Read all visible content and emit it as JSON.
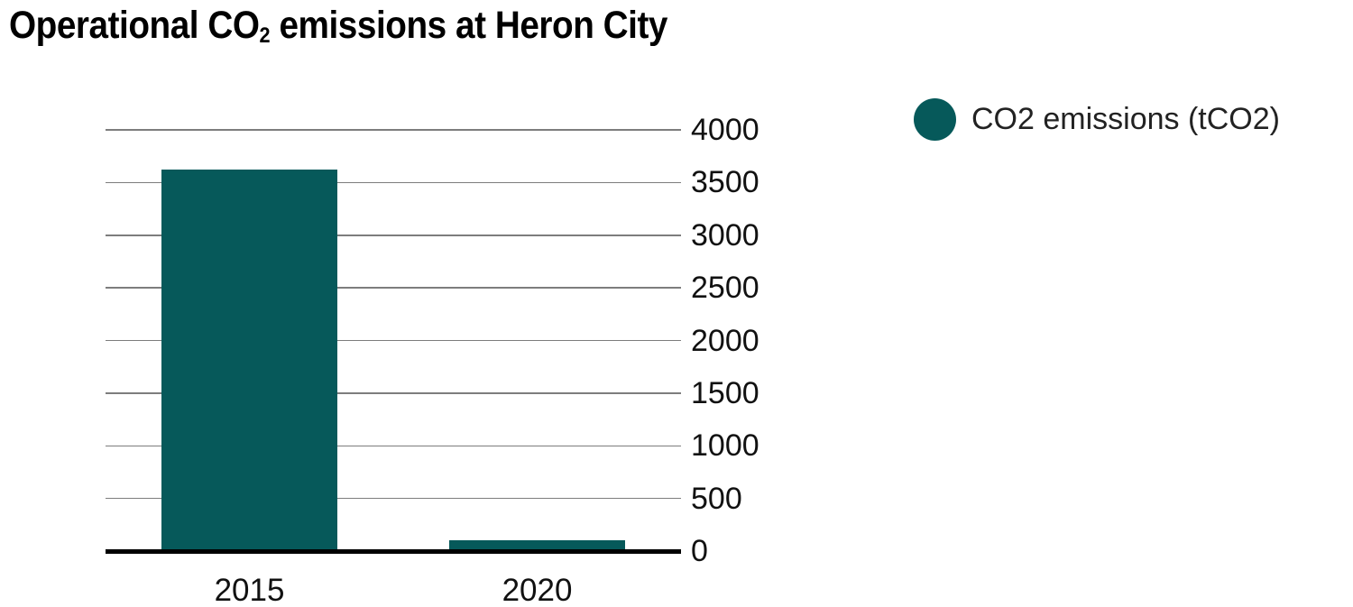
{
  "title": {
    "prefix": "Operational CO",
    "subscript": "2",
    "suffix": " emissions at Heron City"
  },
  "colors": {
    "bar": "#06595a",
    "gridline": "#7d7d7d",
    "axis_line": "#000000",
    "text": "#111111"
  },
  "legend": {
    "label": "CO2 emissions (tCO2)",
    "marker": "circle-icon",
    "marker_color": "#06595a"
  },
  "chart_data": {
    "type": "bar",
    "title": "Operational CO2 emissions at Heron City",
    "categories": [
      "2015",
      "2020"
    ],
    "series": [
      {
        "name": "CO2 emissions (tCO2)",
        "values": [
          3620,
          100
        ]
      }
    ],
    "xlabel": "",
    "ylabel": "",
    "ylim": [
      0,
      4000
    ],
    "ytick_step": 500,
    "ytick_labels": [
      "0",
      "500",
      "1000",
      "1500",
      "2000",
      "2500",
      "3000",
      "3500",
      "4000"
    ],
    "grid": true,
    "gridlines": "horizontal",
    "legend_position": "top-right",
    "bar_color": "#06595a"
  }
}
